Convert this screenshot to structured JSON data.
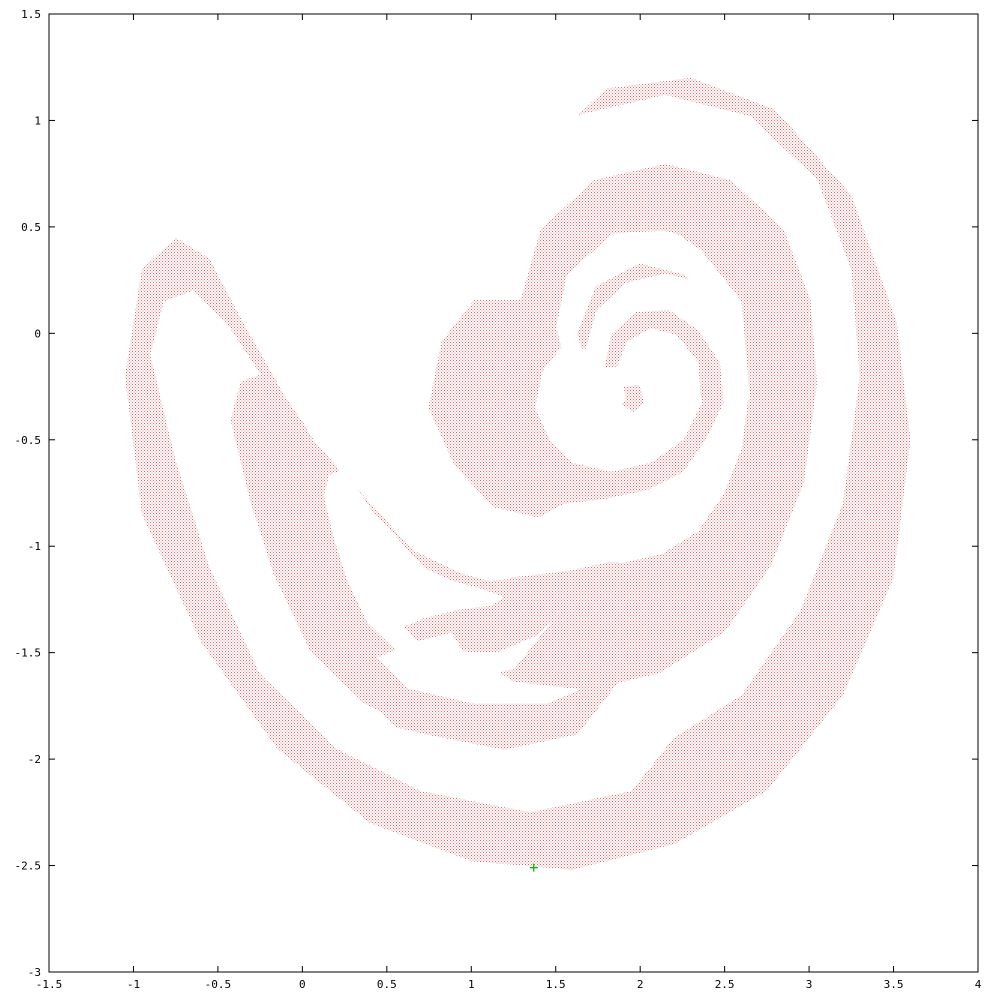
{
  "chart_data": {
    "type": "scatter",
    "title": "",
    "xlabel": "",
    "ylabel": "",
    "xlim": [
      -1.5,
      4
    ],
    "ylim": [
      -3,
      1.5
    ],
    "grid": false,
    "x_ticks": [
      "-1.5",
      "-1",
      "-0.5",
      "0",
      "0.5",
      "1",
      "1.5",
      "2",
      "2.5",
      "3",
      "3.5",
      "4"
    ],
    "y_ticks": [
      "1.5",
      "1",
      "0.5",
      "0",
      "-0.5",
      "-1",
      "-1.5",
      "-2",
      "-2.5",
      "-3"
    ],
    "x_tick_values": [
      -1.5,
      -1,
      -0.5,
      0,
      0.5,
      1,
      1.5,
      2,
      2.5,
      3,
      3.5,
      4
    ],
    "y_tick_values": [
      1.5,
      1,
      0.5,
      0,
      -0.5,
      -1,
      -1.5,
      -2,
      -2.5,
      -3
    ],
    "series": [
      {
        "color": "#dd6666",
        "marker": "dot",
        "regions": [
          {
            "part": "outer-envelope",
            "points": [
              [
                -1.05,
                -0.2
              ],
              [
                -0.95,
                0.3
              ],
              [
                -0.75,
                0.45
              ],
              [
                -0.55,
                0.35
              ],
              [
                -0.35,
                0.05
              ],
              [
                -0.1,
                -0.3
              ],
              [
                0.25,
                -0.7
              ],
              [
                0.7,
                -1.05
              ],
              [
                1.2,
                -1.15
              ],
              [
                1.75,
                -1.1
              ],
              [
                2.25,
                -0.85
              ],
              [
                2.4,
                -0.7
              ],
              [
                2.2,
                -0.3
              ],
              [
                1.8,
                -0.1
              ],
              [
                1.25,
                -0.45
              ],
              [
                1.1,
                -0.2
              ],
              [
                1.1,
                0.4
              ],
              [
                1.4,
                0.85
              ],
              [
                1.8,
                1.15
              ],
              [
                2.3,
                1.2
              ],
              [
                2.8,
                1.05
              ],
              [
                3.25,
                0.65
              ],
              [
                3.52,
                0.05
              ],
              [
                3.6,
                -0.5
              ],
              [
                3.5,
                -1.15
              ],
              [
                3.2,
                -1.7
              ],
              [
                2.75,
                -2.15
              ],
              [
                2.2,
                -2.4
              ],
              [
                1.6,
                -2.52
              ],
              [
                1.0,
                -2.48
              ],
              [
                0.4,
                -2.3
              ],
              [
                -0.15,
                -1.95
              ],
              [
                -0.6,
                -1.45
              ],
              [
                -0.95,
                -0.85
              ]
            ]
          },
          {
            "part": "spiral-head",
            "points": [
              [
                1.05,
                0.3
              ],
              [
                1.2,
                0.72
              ],
              [
                1.6,
                1.02
              ],
              [
                2.15,
                1.12
              ],
              [
                2.65,
                1.02
              ],
              [
                3.05,
                0.72
              ],
              [
                3.25,
                0.3
              ],
              [
                3.3,
                -0.2
              ],
              [
                3.2,
                -0.8
              ],
              [
                2.95,
                -1.3
              ],
              [
                2.6,
                -1.7
              ],
              [
                2.1,
                -1.95
              ],
              [
                1.55,
                -2.05
              ],
              [
                1.0,
                -2.0
              ],
              [
                0.6,
                -1.8
              ],
              [
                0.4,
                -1.55
              ],
              [
                0.75,
                -1.4
              ],
              [
                1.3,
                -1.35
              ],
              [
                1.9,
                -1.25
              ],
              [
                2.4,
                -1.05
              ],
              [
                2.7,
                -0.7
              ],
              [
                2.95,
                -0.3
              ],
              [
                2.9,
                0.15
              ],
              [
                2.6,
                0.5
              ],
              [
                2.2,
                0.72
              ],
              [
                1.75,
                0.7
              ],
              [
                1.4,
                0.45
              ],
              [
                1.3,
                0.05
              ],
              [
                1.45,
                -0.25
              ],
              [
                1.7,
                -0.4
              ],
              [
                1.85,
                -0.3
              ],
              [
                1.8,
                -0.1
              ],
              [
                1.55,
                -0.12
              ],
              [
                1.48,
                0.1
              ],
              [
                1.62,
                0.38
              ],
              [
                1.95,
                0.52
              ],
              [
                2.3,
                0.45
              ],
              [
                2.6,
                0.15
              ],
              [
                2.65,
                -0.3
              ],
              [
                2.4,
                -0.7
              ],
              [
                1.95,
                -0.95
              ],
              [
                1.4,
                -1.05
              ],
              [
                0.85,
                -0.95
              ],
              [
                0.55,
                -0.7
              ],
              [
                0.35,
                -0.35
              ],
              [
                0.45,
                0.05
              ],
              [
                0.7,
                0.3
              ]
            ]
          },
          {
            "part": "left-lobe",
            "points": [
              [
                -0.9,
                -0.1
              ],
              [
                -0.82,
                0.15
              ],
              [
                -0.65,
                0.2
              ],
              [
                -0.45,
                0.05
              ],
              [
                -0.2,
                -0.25
              ],
              [
                0.2,
                -0.6
              ],
              [
                0.6,
                -0.95
              ],
              [
                1.0,
                -1.1
              ],
              [
                1.45,
                -1.2
              ],
              [
                1.8,
                -1.3
              ],
              [
                1.6,
                -1.4
              ],
              [
                1.1,
                -1.45
              ],
              [
                0.6,
                -1.55
              ],
              [
                0.3,
                -1.65
              ],
              [
                0.55,
                -1.85
              ],
              [
                1.1,
                -1.95
              ],
              [
                1.7,
                -1.95
              ],
              [
                2.3,
                -1.75
              ],
              [
                2.65,
                -1.45
              ],
              [
                2.5,
                -1.6
              ],
              [
                1.95,
                -2.15
              ],
              [
                1.35,
                -2.25
              ],
              [
                0.7,
                -2.15
              ],
              [
                0.2,
                -1.95
              ],
              [
                -0.25,
                -1.6
              ],
              [
                -0.55,
                -1.1
              ],
              [
                -0.75,
                -0.6
              ]
            ]
          }
        ]
      },
      {
        "color": "#00aa00",
        "marker": "plus",
        "points": [
          [
            1.37,
            -2.51
          ]
        ]
      }
    ]
  }
}
